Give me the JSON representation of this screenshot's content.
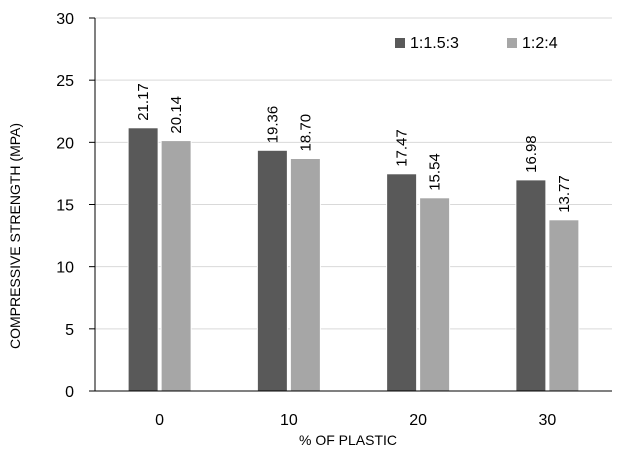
{
  "chart_data": {
    "type": "bar",
    "title": "",
    "xlabel": "% OF PLASTIC",
    "ylabel": "COMPRESSIVE STRENGTH (MPA)",
    "categories": [
      "0",
      "10",
      "20",
      "30"
    ],
    "series": [
      {
        "name": "1:1.5:3",
        "values": [
          21.17,
          19.36,
          17.47,
          16.98
        ],
        "labels": [
          "21.17",
          "19.36",
          "17.47",
          "16.98"
        ],
        "color": "#595959"
      },
      {
        "name": "1:2:4",
        "values": [
          20.14,
          18.7,
          15.54,
          13.77
        ],
        "labels": [
          "20.14",
          "18.70",
          "15.54",
          "13.77"
        ],
        "color": "#a6a6a6"
      }
    ],
    "ylim": [
      0,
      30
    ],
    "yticks": [
      "0",
      "5",
      "10",
      "15",
      "20",
      "25",
      "30"
    ],
    "grid": true,
    "legend_position": "top-right"
  }
}
